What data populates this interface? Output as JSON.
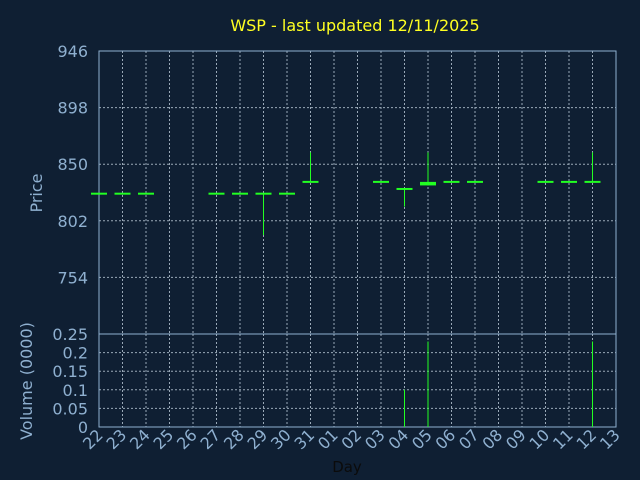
{
  "chart_data": {
    "type": "ohlc",
    "title": "WSP - last updated 12/11/2025",
    "colors": {
      "background": "#0f1f33",
      "price": "#22ff22",
      "volume": "#22ff22",
      "title": "#ffff22",
      "axis_text": "#8fb0d0"
    },
    "x_label": "Day",
    "x_ticks": [
      "22",
      "23",
      "24",
      "25",
      "26",
      "27",
      "28",
      "29",
      "30",
      "31",
      "01",
      "02",
      "03",
      "04",
      "05",
      "06",
      "07",
      "08",
      "09",
      "10",
      "11",
      "12",
      "13"
    ],
    "price_panel": {
      "ylabel": "Price",
      "ylim": [
        706,
        946
      ],
      "yticks": [
        "946",
        "898",
        "850",
        "802",
        "754"
      ],
      "bars": [
        {
          "day": "22",
          "open": 825,
          "high": 825,
          "low": 825,
          "close": 825
        },
        {
          "day": "23",
          "open": 825,
          "high": 825,
          "low": 825,
          "close": 825
        },
        {
          "day": "24",
          "open": 825,
          "high": 825,
          "low": 825,
          "close": 825
        },
        {
          "day": "27",
          "open": 825,
          "high": 825,
          "low": 825,
          "close": 825
        },
        {
          "day": "28",
          "open": 825,
          "high": 825,
          "low": 825,
          "close": 825
        },
        {
          "day": "29",
          "open": 825,
          "high": 825,
          "low": 790,
          "close": 825
        },
        {
          "day": "30",
          "open": 825,
          "high": 825,
          "low": 825,
          "close": 825
        },
        {
          "day": "31",
          "open": 835,
          "high": 860,
          "low": 835,
          "close": 835
        },
        {
          "day": "03",
          "open": 835,
          "high": 835,
          "low": 835,
          "close": 835
        },
        {
          "day": "04",
          "open": 829,
          "high": 829,
          "low": 814,
          "close": 829
        },
        {
          "day": "05",
          "open": 835,
          "high": 860,
          "low": 832,
          "close": 832
        },
        {
          "day": "06",
          "open": 835,
          "high": 835,
          "low": 835,
          "close": 835
        },
        {
          "day": "07",
          "open": 835,
          "high": 835,
          "low": 835,
          "close": 835
        },
        {
          "day": "10",
          "open": 835,
          "high": 835,
          "low": 835,
          "close": 835
        },
        {
          "day": "11",
          "open": 835,
          "high": 835,
          "low": 835,
          "close": 835
        },
        {
          "day": "12",
          "open": 835,
          "high": 860,
          "low": 835,
          "close": 835
        }
      ]
    },
    "volume_panel": {
      "ylabel": "Volume (0000)",
      "ylim": [
        0,
        0.25
      ],
      "yticks": [
        "0.25",
        "0.2",
        "0.15",
        "0.1",
        "0.05",
        "0"
      ],
      "bars": [
        {
          "day": "04",
          "value": 0.1
        },
        {
          "day": "05",
          "value": 0.23
        },
        {
          "day": "12",
          "value": 0.23
        }
      ]
    }
  }
}
